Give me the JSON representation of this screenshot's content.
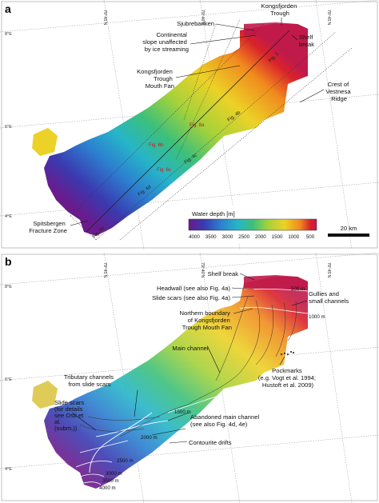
{
  "panel_a": {
    "label": "a",
    "lat_labels": [
      "79°45'N",
      "79°40'N",
      "78°45'N"
    ],
    "lon_labels": [
      "8°E",
      "6°E",
      "4°E"
    ],
    "annotations": {
      "kongsfjorden_trough": "Kongsfjorden\nTrough",
      "sjubrebanken": "Sjubrebanken",
      "shelf_break": "Shelf\nbreak",
      "continental_slope": "Continental\nslope unaffected\nby ice streaming",
      "trough_mouth_fan": "Kongsfjorden\nTrough\nMouth Fan",
      "crest_vestnesa": "Crest of\nVestnesa\nRidge",
      "spitsbergen_fz": "Spitsbergen\nFracture Zone"
    },
    "figure_refs": [
      "Fig. 2",
      "Fig. 4b",
      "Fig. 8a",
      "Fig. 4c",
      "Fig. 6b",
      "Fig. 6c",
      "Fig. 4d",
      "Fig. 4e"
    ],
    "legend": {
      "title": "Water depth [m]",
      "ticks": [
        "4000",
        "3500",
        "3000",
        "2500",
        "2000",
        "1500",
        "1000",
        "500"
      ],
      "colors": [
        "#6a1b8c",
        "#3a3ab0",
        "#2c7fd0",
        "#26b5c8",
        "#3cc07a",
        "#a6d23a",
        "#ecd226",
        "#f08a1e",
        "#d9232a",
        "#c01a4a"
      ]
    },
    "scale_bar": "20 km"
  },
  "panel_b": {
    "label": "b",
    "lat_labels": [
      "79°45'N",
      "79°40'N",
      "78°45'N"
    ],
    "lon_labels": [
      "8°E",
      "6°E",
      "4°E"
    ],
    "annotations": {
      "shelf_break": "Shelf break",
      "headwall": "Headwall (see also Fig. 4a)",
      "slide_scars_top": "Slide scars (see also Fig. 4a)",
      "northern_boundary": "Northern boundary\nof Kongsfjorden\nTrough Mouth Fan",
      "gullies": "Gullies and\nsmall channels",
      "main_channel": "Main channel",
      "tributary": "Tributary channels\nfrom slide scars",
      "pockmarks": "Pockmarks\n(e.g. Vogt et al. 1994;\nHustoft et al. 2009)",
      "slide_scars_left": "Slide scars\n(for details\nsee Osti et\nal.\n(subm.))",
      "abandoned": "Abandoned main channel\n(see also Fig. 4d, 4e)",
      "contourite": "Contourite drifts"
    },
    "contours": [
      "500 m",
      "1000 m",
      "1500 m",
      "2000 m",
      "2500 m",
      "3000 m",
      "3500 m",
      "4000 m"
    ]
  }
}
